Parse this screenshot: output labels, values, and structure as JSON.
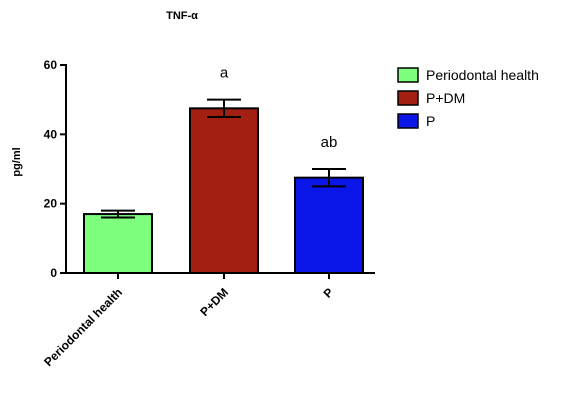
{
  "chart_data": {
    "type": "bar",
    "title": "TNF-α",
    "ylabel": "pg/ml",
    "xlabel": "",
    "ylim": [
      0,
      60
    ],
    "yticks": [
      0,
      20,
      40,
      60
    ],
    "categories": [
      "Periodontal health",
      "P+DM",
      "P"
    ],
    "values": [
      17,
      47.5,
      27.5
    ],
    "errors": [
      1,
      2.5,
      2.5
    ],
    "annotations": [
      "",
      "a",
      "ab"
    ],
    "colors": [
      "#7dff7d",
      "#a21f12",
      "#0a16e8"
    ],
    "grid": false,
    "legend": {
      "placement": "top-right",
      "entries": [
        "Periodontal health",
        "P+DM",
        "P"
      ]
    }
  }
}
